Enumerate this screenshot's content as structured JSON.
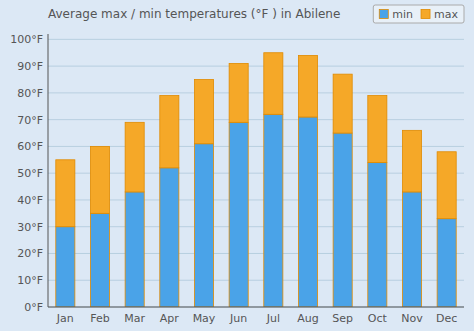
{
  "chart_data": {
    "type": "bar",
    "stacked": true,
    "title": "Average max / min temperatures (°F ) in Abilene",
    "categories": [
      "Jan",
      "Feb",
      "Mar",
      "Apr",
      "May",
      "Jun",
      "Jul",
      "Aug",
      "Sep",
      "Oct",
      "Nov",
      "Dec"
    ],
    "series": [
      {
        "name": "min",
        "color": "#4aa3e8",
        "values": [
          30,
          35,
          43,
          52,
          61,
          69,
          72,
          71,
          65,
          54,
          43,
          33
        ]
      },
      {
        "name": "max",
        "color": "#f5a828",
        "values": [
          25,
          25,
          26,
          27,
          24,
          22,
          23,
          23,
          22,
          25,
          23,
          25
        ]
      }
    ],
    "ylim": [
      0,
      102
    ],
    "yticks": [
      {
        "value": 0,
        "label": "0°F"
      },
      {
        "value": 10,
        "label": "10°F"
      },
      {
        "value": 20,
        "label": "20°F"
      },
      {
        "value": 30,
        "label": "30°F"
      },
      {
        "value": 40,
        "label": "40°F"
      },
      {
        "value": 50,
        "label": "50°F"
      },
      {
        "value": 60,
        "label": "60°F"
      },
      {
        "value": 70,
        "label": "70°F"
      },
      {
        "value": 80,
        "label": "80°F"
      },
      {
        "value": 90,
        "label": "90°F"
      },
      {
        "value": 100,
        "label": "100°F"
      }
    ],
    "grid": true,
    "legend": "upper right"
  }
}
